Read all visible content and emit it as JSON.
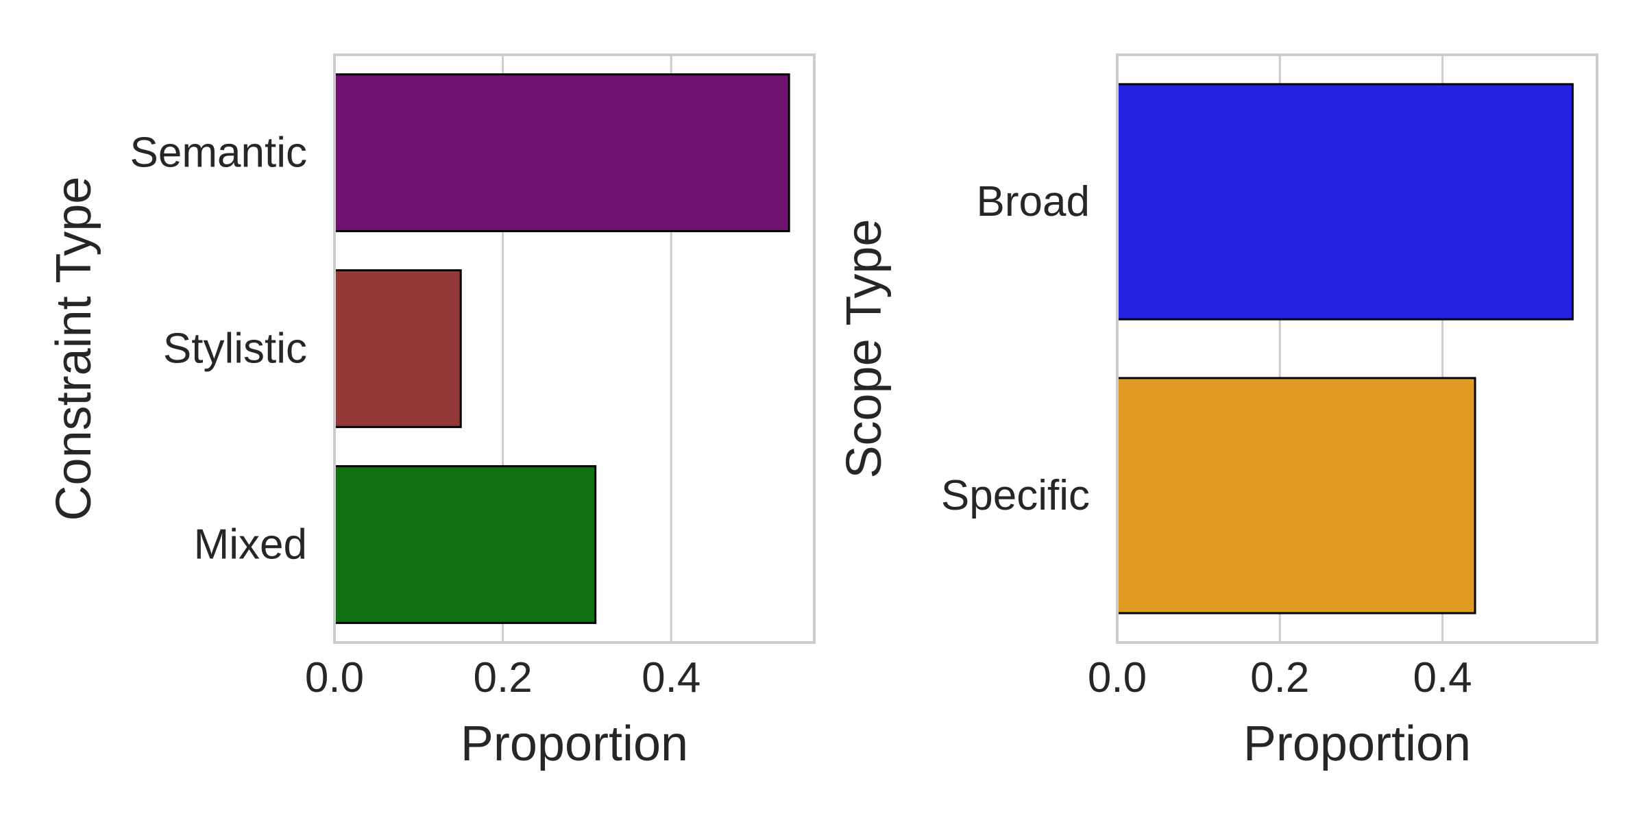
{
  "chart_data": [
    {
      "type": "bar",
      "orientation": "horizontal",
      "categories": [
        "Semantic",
        "Stylistic",
        "Mixed"
      ],
      "values": [
        0.54,
        0.15,
        0.31
      ],
      "colors": [
        "#701270",
        "#933A39",
        "#117011"
      ],
      "xlabel": "Proportion",
      "ylabel": "Constraint Type",
      "xlim": [
        0,
        0.57
      ],
      "xticks": [
        0.0,
        0.2,
        0.4
      ],
      "xtick_labels": [
        "0.0",
        "0.2",
        "0.4"
      ],
      "grid": "vertical"
    },
    {
      "type": "bar",
      "orientation": "horizontal",
      "categories": [
        "Broad",
        "Specific"
      ],
      "values": [
        0.56,
        0.44
      ],
      "colors": [
        "#2222E0",
        "#E09B22"
      ],
      "xlabel": "Proportion",
      "ylabel": "Scope Type",
      "xlim": [
        0,
        0.59
      ],
      "xticks": [
        0.0,
        0.2,
        0.4
      ],
      "xtick_labels": [
        "0.0",
        "0.2",
        "0.4"
      ],
      "grid": "vertical"
    }
  ],
  "style": {
    "text_color": "#262626",
    "grid_color": "#cccccc",
    "frame_color": "#cccccc",
    "bar_edge_color": "#000000"
  }
}
